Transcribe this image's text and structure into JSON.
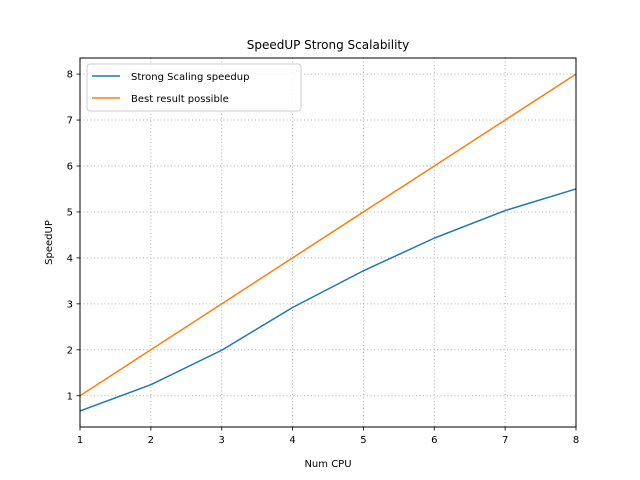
{
  "chart_data": {
    "type": "line",
    "title": "SpeedUP Strong Scalability",
    "xlabel": "Num CPU",
    "ylabel": "SpeedUP",
    "xlim": [
      1,
      8
    ],
    "ylim": [
      0.32,
      8.35
    ],
    "xticks": [
      1,
      2,
      3,
      4,
      5,
      6,
      7,
      8
    ],
    "yticks": [
      1,
      2,
      3,
      4,
      5,
      6,
      7,
      8
    ],
    "grid": true,
    "legend_position": "upper-left",
    "series": [
      {
        "name": "Strong Scaling speedup",
        "color": "#1f77b4",
        "x": [
          1,
          2,
          3,
          4,
          5,
          6,
          7,
          8
        ],
        "y": [
          0.67,
          1.24,
          1.99,
          2.92,
          3.72,
          4.43,
          5.03,
          5.5
        ]
      },
      {
        "name": "Best result possible",
        "color": "#ff7f0e",
        "x": [
          1,
          2,
          3,
          4,
          5,
          6,
          7,
          8
        ],
        "y": [
          1,
          2,
          3,
          4,
          5,
          6,
          7,
          8
        ]
      }
    ]
  }
}
